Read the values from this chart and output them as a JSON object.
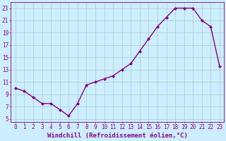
{
  "x": [
    0,
    1,
    2,
    3,
    4,
    5,
    6,
    7,
    8,
    9,
    10,
    11,
    12,
    13,
    14,
    15,
    16,
    17,
    18,
    19,
    20,
    21,
    22,
    23
  ],
  "y": [
    10.0,
    9.5,
    8.5,
    7.5,
    7.5,
    6.5,
    5.5,
    7.5,
    10.5,
    11.0,
    11.5,
    12.0,
    13.0,
    14.0,
    16.0,
    18.0,
    20.0,
    21.5,
    23.0,
    23.0,
    23.0,
    21.0,
    20.0,
    13.5
  ],
  "line_color": "#880088",
  "marker": "D",
  "marker_size": 2,
  "bg_color": "#cceeff",
  "grid_color": "#aacccc",
  "xlabel": "Windchill (Refroidissement éolien,°C)",
  "xlim": [
    -0.5,
    23.5
  ],
  "ylim": [
    4.5,
    24.0
  ],
  "yticks": [
    5,
    7,
    9,
    11,
    13,
    15,
    17,
    19,
    21,
    23
  ],
  "xticks": [
    0,
    1,
    2,
    3,
    4,
    5,
    6,
    7,
    8,
    9,
    10,
    11,
    12,
    13,
    14,
    15,
    16,
    17,
    18,
    19,
    20,
    21,
    22,
    23
  ],
  "xlabel_fontsize": 6.5,
  "tick_fontsize": 5.5,
  "line_width": 1.0,
  "figure_width": 3.2,
  "figure_height": 2.0,
  "dpi": 100
}
